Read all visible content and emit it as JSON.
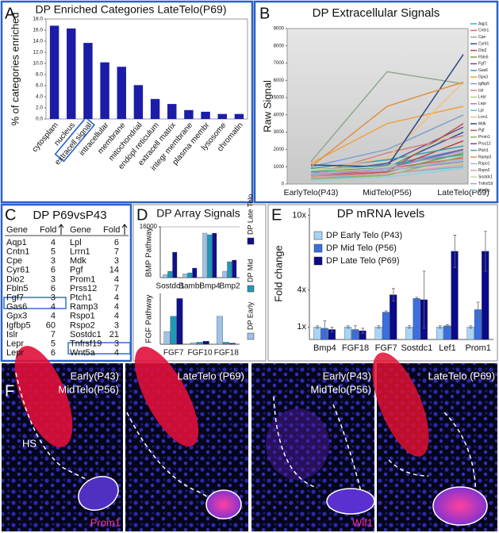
{
  "panel_labels": [
    "A",
    "B",
    "C",
    "D",
    "E",
    "F"
  ],
  "chart_data": [
    {
      "type": "bar",
      "title": "DP Enriched Categories LateTelo(P69)",
      "y_label": "% of categories enriched",
      "categories": [
        "cytosplam",
        "nucleus",
        "extracell signal",
        "intracellular",
        "membrane",
        "mitochondrial",
        "endopl reticulum",
        "extracell matrix",
        "integr membrane",
        "plasma membr",
        "lysosome",
        "chromatin"
      ],
      "values": [
        16.8,
        16.3,
        13.7,
        10.2,
        9.4,
        6.1,
        3.6,
        2.7,
        1.6,
        1.3,
        0.9,
        0.9
      ],
      "color": "#1c1ca8",
      "ylim": [
        0,
        18
      ],
      "yticks": [
        {
          "value": 0,
          "label": "0.0"
        },
        {
          "value": 2,
          "label": "2.0"
        },
        {
          "value": 4,
          "label": "4.0"
        },
        {
          "value": 6,
          "label": "6.0"
        },
        {
          "value": 8,
          "label": "8.0"
        },
        {
          "value": 10,
          "label": "10.0"
        },
        {
          "value": 12,
          "label": "12.0"
        },
        {
          "value": 14,
          "label": "14.0"
        },
        {
          "value": 16,
          "label": "16.0"
        },
        {
          "value": 18,
          "label": "18.0"
        }
      ]
    },
    {
      "type": "line",
      "title": "DP Extracellular Signals",
      "y_label": "Raw Signal",
      "categories": [
        "EarlyTelo(P43)",
        "MidTelo(P56)",
        "LateTelo(P69)"
      ],
      "ylim": [
        0,
        9000
      ],
      "yticks": [
        0,
        1000,
        2000,
        3000,
        4000,
        5000,
        6000,
        7000,
        8000,
        9000
      ],
      "series": [
        {
          "name": "Aqp1",
          "color": "#4aa0d8",
          "values": [
            800,
            1100,
            2000
          ]
        },
        {
          "name": "Cntn1",
          "color": "#e06060",
          "values": [
            600,
            900,
            1500
          ]
        },
        {
          "name": "Cpe",
          "color": "#8fa88f",
          "values": [
            1300,
            6500,
            5800
          ]
        },
        {
          "name": "Cyr61",
          "color": "#3050a0",
          "values": [
            700,
            1000,
            3000
          ]
        },
        {
          "name": "Dio2",
          "color": "#c04040",
          "values": [
            500,
            800,
            2500
          ]
        },
        {
          "name": "Fbln5",
          "color": "#7a9a40",
          "values": [
            400,
            700,
            1800
          ]
        },
        {
          "name": "Fgf7",
          "color": "#6a4a9a",
          "values": [
            600,
            1200,
            3300
          ]
        },
        {
          "name": "Gas6",
          "color": "#30a0b0",
          "values": [
            900,
            1400,
            2200
          ]
        },
        {
          "name": "Gpx3",
          "color": "#f0a040",
          "values": [
            1200,
            3500,
            4500
          ]
        },
        {
          "name": "Igfbp5",
          "color": "#80a0d0",
          "values": [
            1000,
            2000,
            4000
          ]
        },
        {
          "name": "Islr",
          "color": "#d08080",
          "values": [
            500,
            1800,
            2800
          ]
        },
        {
          "name": "Lepr",
          "color": "#b0d080",
          "values": [
            700,
            900,
            1200
          ]
        },
        {
          "name": "Lepr",
          "color": "#a080c0",
          "values": [
            600,
            800,
            1300
          ]
        },
        {
          "name": "Lpl",
          "color": "#60c0d0",
          "values": [
            300,
            600,
            1000
          ]
        },
        {
          "name": "Lrrn1",
          "color": "#f0c080",
          "values": [
            800,
            1500,
            5900
          ]
        },
        {
          "name": "Mdk",
          "color": "#2a4a80",
          "values": [
            1100,
            1000,
            7500
          ]
        },
        {
          "name": "Pgf",
          "color": "#c05050",
          "values": [
            400,
            700,
            3500
          ]
        },
        {
          "name": "Prom1",
          "color": "#90b060",
          "values": [
            300,
            500,
            1600
          ]
        },
        {
          "name": "Prss12",
          "color": "#705090",
          "values": [
            500,
            900,
            2000
          ]
        },
        {
          "name": "Ptch1",
          "color": "#40a0a0",
          "values": [
            700,
            1100,
            1700
          ]
        },
        {
          "name": "Ramp3",
          "color": "#e09040",
          "values": [
            1000,
            4500,
            5900
          ]
        },
        {
          "name": "Rspo1",
          "color": "#a0b8e0",
          "values": [
            600,
            800,
            1400
          ]
        },
        {
          "name": "Rspo2",
          "color": "#e0a0a0",
          "values": [
            400,
            600,
            1100
          ]
        },
        {
          "name": "Sostdc1",
          "color": "#c8d8a0",
          "values": [
            800,
            1000,
            3200
          ]
        },
        {
          "name": "Tnfrsf19",
          "color": "#b0a0d0",
          "values": [
            500,
            900,
            1900
          ]
        },
        {
          "name": "Wnt5a",
          "color": "#90d0e0",
          "values": [
            200,
            400,
            900
          ]
        }
      ]
    },
    {
      "type": "bar",
      "title": "DP Array Signals",
      "y_label": "BMP Pathway",
      "categories": [
        "Sostdc1",
        "Bambi",
        "Bmp4",
        "Bmp2"
      ],
      "ylim": [
        0,
        16000
      ],
      "yticks": [
        16000
      ],
      "grid": true,
      "series": [
        {
          "name": "DP Early",
          "color": "#9ec3e6",
          "values": [
            1000,
            1200,
            14000,
            2000
          ]
        },
        {
          "name": "DP Mid",
          "color": "#1f9ab8",
          "values": [
            2000,
            1500,
            13500,
            5000
          ]
        },
        {
          "name": "DP Late Telo",
          "color": "#10108c",
          "values": [
            8000,
            3000,
            14000,
            5500
          ]
        }
      ]
    },
    {
      "type": "bar",
      "y_label": "FGF Pathway",
      "categories": [
        "FGF7",
        "FGF10",
        "FGF18"
      ],
      "ylim": [
        0,
        100
      ],
      "series": [
        {
          "color": "#9ec3e6",
          "values": [
            25,
            3,
            55
          ]
        },
        {
          "color": "#1f9ab8",
          "values": [
            55,
            4,
            4
          ]
        },
        {
          "color": "#10108c",
          "values": [
            90,
            6,
            2
          ]
        }
      ]
    },
    {
      "type": "bar",
      "title": "DP mRNA levels",
      "y_label": "Fold change",
      "categories": [
        "Bmp4",
        "FGF18",
        "FGF7",
        "Sostdc1",
        "Lef1",
        "Prom1"
      ],
      "ylim": [
        0,
        10.6
      ],
      "yticks": [
        {
          "value": 1,
          "label": "1x"
        },
        {
          "value": 4,
          "label": "4x"
        },
        {
          "value": 10,
          "label": "10x"
        }
      ],
      "series": [
        {
          "name": "DP Early Telo (P43)",
          "color": "#a8d4f5",
          "values": [
            1,
            1,
            1,
            1,
            1,
            1
          ],
          "errors": [
            0.1,
            0.1,
            0.1,
            0.1,
            0.1,
            0.1
          ]
        },
        {
          "name": "DP Mid Telo (P56)",
          "color": "#3a6fe0",
          "values": [
            0.9,
            0.8,
            2.2,
            3.3,
            1.1,
            2.4
          ],
          "errors": [
            0.6,
            0.3,
            0.1,
            0.1,
            0.1,
            0.6
          ]
        },
        {
          "name": "DP Late Telo (P69)",
          "color": "#0a0a8a",
          "values": [
            0.8,
            0.7,
            3.6,
            3.2,
            7.1,
            7.1
          ],
          "errors": [
            0.2,
            0.2,
            0.5,
            2.3,
            1.3,
            1.6
          ]
        }
      ]
    }
  ],
  "table": {
    "title": "DP P69vsP43",
    "header": [
      "Gene",
      "Fold",
      "Gene",
      "Fold"
    ],
    "rows": [
      [
        "Aqp1",
        4,
        "Lpl",
        6
      ],
      [
        "Cntn1",
        5,
        "Lrrn1",
        7
      ],
      [
        "Cpe",
        3,
        "Mdk",
        3
      ],
      [
        "Cyr61",
        6,
        "Pgf",
        14
      ],
      [
        "Dio2",
        3,
        "Prom1",
        4
      ],
      [
        "Fbln5",
        6,
        "Prss12",
        7
      ],
      [
        "Fgf7",
        3,
        "Ptch1",
        4
      ],
      [
        "Gas6",
        4,
        "Ramp3",
        4
      ],
      [
        "Gpx3",
        4,
        "Rspo1",
        4
      ],
      [
        "Igfbp5",
        60,
        "Rspo2",
        3
      ],
      [
        "Islr",
        7,
        "Sostdc1",
        21
      ],
      [
        "Lepr",
        5,
        "Tnfrsf19",
        3
      ],
      [
        "Lepr",
        6,
        "Wnt5a",
        4
      ]
    ]
  },
  "micrographs": {
    "hs_label": "HS",
    "early_stage": "Early(P43)",
    "mid_stage": "MidTelo(P56)",
    "late_stage": "LateTelo (P69)",
    "stains": [
      "Prom1",
      "Wif1"
    ]
  }
}
